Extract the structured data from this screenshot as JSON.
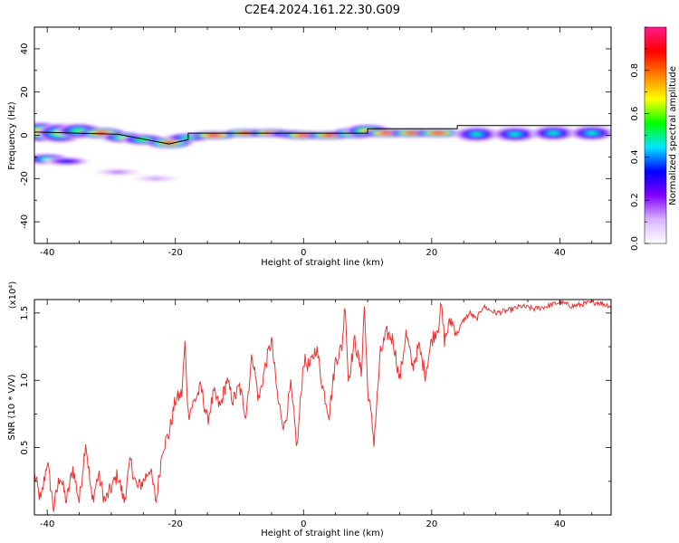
{
  "title": "C2E4.2024.161.22.30.G09",
  "chart_data": [
    {
      "type": "heatmap",
      "xlabel": "Height of straight line (km)",
      "ylabel": "Frequency (Hz)",
      "xlim": [
        -42,
        48
      ],
      "ylim": [
        -50,
        50
      ],
      "xticks": [
        -40,
        -20,
        0,
        20,
        40
      ],
      "yticks": [
        -40,
        -20,
        0,
        20,
        40
      ],
      "colorbar": {
        "label": "Normalized spectral amplitude",
        "range": [
          0,
          1
        ],
        "ticks": [
          0.0,
          0.2,
          0.4,
          0.6,
          0.8
        ],
        "colors": [
          "#ffffff",
          "#d9b3ff",
          "#8000ff",
          "#0000ff",
          "#00e5ff",
          "#00ff00",
          "#ffff00",
          "#ff8000",
          "#ff0000",
          "#ff1a8c"
        ]
      },
      "track": [
        {
          "x": -41,
          "f": 1.5,
          "w": 4,
          "a": 0.75
        },
        {
          "x": -38,
          "f": 1.0,
          "w": 4,
          "a": 0.6
        },
        {
          "x": -35,
          "f": 2.0,
          "w": 3,
          "a": 0.55
        },
        {
          "x": -31.5,
          "f": 1.0,
          "w": 2,
          "a": 0.9
        },
        {
          "x": -28,
          "f": -1.0,
          "w": 2,
          "a": 0.6
        },
        {
          "x": -25,
          "f": -2.0,
          "w": 2,
          "a": 0.55
        },
        {
          "x": -21,
          "f": -3.5,
          "w": 2,
          "a": 0.85
        },
        {
          "x": -18,
          "f": -1.0,
          "w": 1.5,
          "a": 0.5
        },
        {
          "x": -14,
          "f": 0.0,
          "w": 1.5,
          "a": 0.95
        },
        {
          "x": -9,
          "f": 1.0,
          "w": 1.5,
          "a": 0.9
        },
        {
          "x": -5,
          "f": 1.0,
          "w": 1.5,
          "a": 0.95
        },
        {
          "x": -2,
          "f": 0.5,
          "w": 1.5,
          "a": 0.6
        },
        {
          "x": 0,
          "f": 0.0,
          "w": 1.5,
          "a": 0.95
        },
        {
          "x": 4,
          "f": 0.0,
          "w": 1.5,
          "a": 0.9
        },
        {
          "x": 8,
          "f": 1.0,
          "w": 2,
          "a": 0.85
        },
        {
          "x": 10,
          "f": 2.0,
          "w": 2.5,
          "a": 0.7
        },
        {
          "x": 13,
          "f": 1.0,
          "w": 1.5,
          "a": 0.95
        },
        {
          "x": 17,
          "f": 1.0,
          "w": 1.5,
          "a": 0.9
        },
        {
          "x": 21,
          "f": 1.0,
          "w": 1.5,
          "a": 0.9
        },
        {
          "x": 27,
          "f": 0.5,
          "w": 3,
          "a": 0.45
        },
        {
          "x": 33,
          "f": 0.5,
          "w": 3,
          "a": 0.45
        },
        {
          "x": 39,
          "f": 1.0,
          "w": 3,
          "a": 0.45
        },
        {
          "x": 45,
          "f": 1.0,
          "w": 3,
          "a": 0.45
        }
      ],
      "secondary": [
        {
          "x": -40,
          "f": -11,
          "w": 2,
          "a": 0.5
        },
        {
          "x": -37,
          "f": -12,
          "w": 1.5,
          "a": 0.3
        },
        {
          "x": -29,
          "f": -17,
          "w": 1,
          "a": 0.15
        },
        {
          "x": -23,
          "f": -20,
          "w": 1,
          "a": 0.12
        }
      ],
      "fit_line": [
        {
          "x": -42,
          "f": 1.5
        },
        {
          "x": -29,
          "f": 0.5
        },
        {
          "x": -21,
          "f": -4
        },
        {
          "x": -18,
          "f": -2
        },
        {
          "x": -18,
          "f": 1
        },
        {
          "x": 10,
          "f": 1
        },
        {
          "x": 10,
          "f": 3
        },
        {
          "x": 24,
          "f": 3
        },
        {
          "x": 24,
          "f": 4.5
        },
        {
          "x": 48,
          "f": 4.5
        }
      ]
    },
    {
      "type": "line",
      "xlabel": "Height of straight line (km)",
      "ylabel": "SNR (10 * V/V)",
      "y_multiplier": "(x10⁴)",
      "xlim": [
        -42,
        48
      ],
      "ylim": [
        0,
        1.6
      ],
      "xticks": [
        -40,
        -20,
        0,
        20,
        40
      ],
      "yticks": [
        0.5,
        1.0,
        1.5
      ],
      "series": [
        {
          "color": "#ee3333",
          "x": [
            -42,
            -41,
            -40,
            -39,
            -38,
            -37,
            -36,
            -35,
            -34,
            -33,
            -32,
            -31,
            -30,
            -29,
            -28,
            -27,
            -26,
            -25,
            -24,
            -23,
            -22,
            -21,
            -20,
            -19,
            -18.5,
            -18,
            -17,
            -16,
            -15,
            -14,
            -13,
            -12,
            -11,
            -10,
            -9,
            -8,
            -7,
            -6,
            -5,
            -4,
            -3,
            -2,
            -1,
            0,
            1,
            2,
            3,
            4,
            5,
            6,
            6.5,
            7,
            8,
            9,
            9.5,
            10,
            10.5,
            11,
            12,
            13,
            14,
            15,
            16,
            17,
            18,
            19,
            20,
            21,
            21.5,
            22,
            23,
            24,
            25,
            26,
            27,
            28,
            30,
            32,
            34,
            36,
            38,
            40,
            42,
            44,
            46,
            48
          ],
          "y": [
            0.3,
            0.1,
            0.4,
            0.05,
            0.3,
            0.1,
            0.35,
            0.1,
            0.55,
            0.1,
            0.3,
            0.1,
            0.2,
            0.3,
            0.1,
            0.4,
            0.2,
            0.25,
            0.35,
            0.1,
            0.5,
            0.6,
            0.85,
            0.9,
            1.27,
            0.75,
            0.85,
            0.95,
            0.7,
            0.9,
            0.8,
            1.0,
            0.85,
            0.95,
            0.75,
            1.2,
            0.85,
            1.1,
            1.3,
            0.85,
            0.65,
            0.95,
            0.5,
            1.15,
            1.1,
            1.25,
            0.95,
            0.75,
            1.15,
            1.25,
            1.58,
            1.0,
            1.3,
            1.05,
            1.55,
            0.95,
            0.75,
            0.55,
            1.2,
            1.35,
            1.3,
            1.0,
            1.35,
            1.1,
            1.25,
            1.05,
            1.3,
            1.4,
            1.55,
            1.3,
            1.45,
            1.35,
            1.45,
            1.5,
            1.45,
            1.55,
            1.5,
            1.52,
            1.55,
            1.53,
            1.55,
            1.58,
            1.55,
            1.57,
            1.58,
            1.55
          ]
        }
      ]
    }
  ]
}
